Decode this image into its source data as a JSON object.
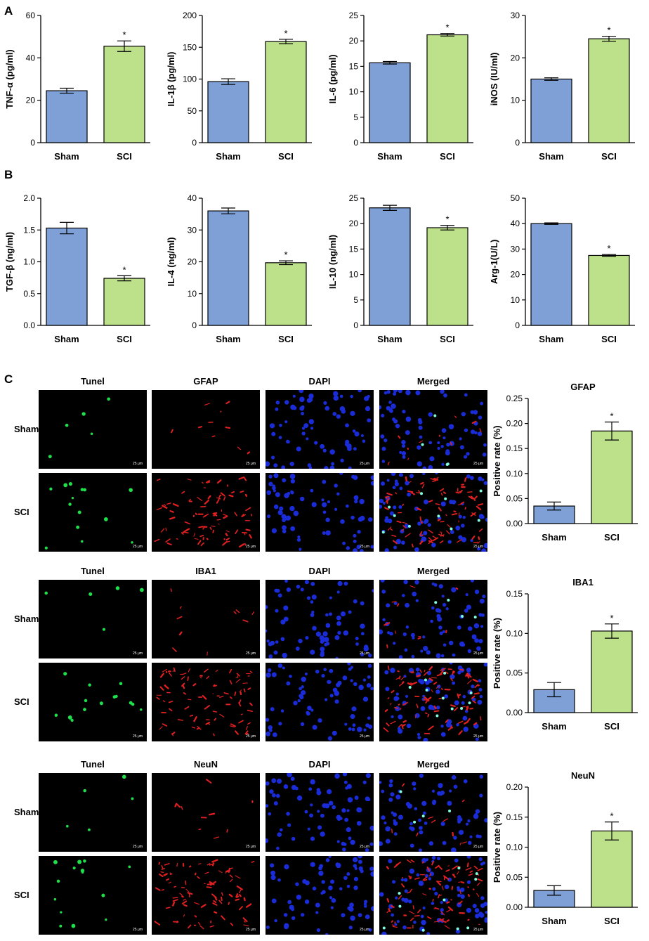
{
  "panels": {
    "a": "A",
    "b": "B",
    "c": "C"
  },
  "colors": {
    "sham": "#7ea0d6",
    "sci": "#bde08a",
    "axis": "#000000"
  },
  "chart_data": [
    {
      "id": "tnf",
      "type": "bar",
      "categories": [
        "Sham",
        "SCI"
      ],
      "values": [
        24.5,
        45.5
      ],
      "errors": [
        1.2,
        2.5
      ],
      "sig": [
        "",
        "*"
      ],
      "ylabel": "TNF-α (pg/ml)",
      "ylim": [
        0,
        60
      ],
      "yticks": [
        "0",
        "20",
        "40",
        "60"
      ]
    },
    {
      "id": "il1b",
      "type": "bar",
      "categories": [
        "Sham",
        "SCI"
      ],
      "values": [
        96,
        159
      ],
      "errors": [
        4.5,
        3.5
      ],
      "sig": [
        "",
        "*"
      ],
      "ylabel": "IL-1β (pg/ml)",
      "ylim": [
        0,
        200
      ],
      "yticks": [
        "0",
        "50",
        "100",
        "150",
        "200"
      ]
    },
    {
      "id": "il6",
      "type": "bar",
      "categories": [
        "Sham",
        "SCI"
      ],
      "values": [
        15.7,
        21.2
      ],
      "errors": [
        0.25,
        0.25
      ],
      "sig": [
        "",
        "*"
      ],
      "ylabel": "IL-6 (pg/ml)",
      "ylim": [
        0,
        25
      ],
      "yticks": [
        "0",
        "5",
        "10",
        "15",
        "20",
        "25"
      ]
    },
    {
      "id": "inos",
      "type": "bar",
      "categories": [
        "Sham",
        "SCI"
      ],
      "values": [
        15.0,
        24.5
      ],
      "errors": [
        0.3,
        0.6
      ],
      "sig": [
        "",
        "*"
      ],
      "ylabel": "iNOS (IU/ml)",
      "ylim": [
        0,
        30
      ],
      "yticks": [
        "0",
        "10",
        "20",
        "30"
      ]
    },
    {
      "id": "tgfb",
      "type": "bar",
      "categories": [
        "Sham",
        "SCI"
      ],
      "values": [
        1.53,
        0.74
      ],
      "errors": [
        0.09,
        0.04
      ],
      "sig": [
        "",
        "*"
      ],
      "ylabel": "TGF-β (ng/ml)",
      "ylim": [
        0,
        2.0
      ],
      "yticks": [
        "0.0",
        "0.5",
        "1.0",
        "1.5",
        "2.0"
      ]
    },
    {
      "id": "il4",
      "type": "bar",
      "categories": [
        "Sham",
        "SCI"
      ],
      "values": [
        36,
        19.7
      ],
      "errors": [
        0.9,
        0.6
      ],
      "sig": [
        "",
        "*"
      ],
      "ylabel": "IL-4 (ng/ml)",
      "ylim": [
        0,
        40
      ],
      "yticks": [
        "0",
        "10",
        "20",
        "30",
        "40"
      ]
    },
    {
      "id": "il10",
      "type": "bar",
      "categories": [
        "Sham",
        "SCI"
      ],
      "values": [
        23.1,
        19.2
      ],
      "errors": [
        0.5,
        0.45
      ],
      "sig": [
        "",
        "*"
      ],
      "ylabel": "IL-10 (ng/ml)",
      "ylim": [
        0,
        25
      ],
      "yticks": [
        "0",
        "5",
        "10",
        "15",
        "20",
        "25"
      ]
    },
    {
      "id": "arg1",
      "type": "bar",
      "categories": [
        "Sham",
        "SCI"
      ],
      "values": [
        40,
        27.5
      ],
      "errors": [
        0.3,
        0.35
      ],
      "sig": [
        "",
        "*"
      ],
      "ylabel": "Arg-1(U/L)",
      "ylim": [
        0,
        50
      ],
      "yticks": [
        "0",
        "10",
        "20",
        "30",
        "40",
        "50"
      ]
    },
    {
      "id": "gfap",
      "type": "bar",
      "title": "GFAP",
      "categories": [
        "Sham",
        "SCI"
      ],
      "values": [
        0.035,
        0.185
      ],
      "errors": [
        0.008,
        0.018
      ],
      "sig": [
        "",
        "*"
      ],
      "ylabel": "Positive rate (%)",
      "ylim": [
        0,
        0.25
      ],
      "yticks": [
        "0.00",
        "0.05",
        "0.10",
        "0.15",
        "0.20",
        "0.25"
      ]
    },
    {
      "id": "iba1",
      "type": "bar",
      "title": "IBA1",
      "categories": [
        "Sham",
        "SCI"
      ],
      "values": [
        0.029,
        0.103
      ],
      "errors": [
        0.009,
        0.009
      ],
      "sig": [
        "",
        "*"
      ],
      "ylabel": "Positive rate (%)",
      "ylim": [
        0,
        0.15
      ],
      "yticks": [
        "0.00",
        "0.05",
        "0.10",
        "0.15"
      ]
    },
    {
      "id": "neun",
      "type": "bar",
      "title": "NeuN",
      "categories": [
        "Sham",
        "SCI"
      ],
      "values": [
        0.028,
        0.127
      ],
      "errors": [
        0.008,
        0.015
      ],
      "sig": [
        "",
        "*"
      ],
      "ylabel": "Positive rate (%)",
      "ylim": [
        0,
        0.2
      ],
      "yticks": [
        "0.00",
        "0.05",
        "0.10",
        "0.15",
        "0.20"
      ]
    }
  ],
  "micrographs": {
    "scale_label": "25 μm",
    "rows": [
      "Sham",
      "SCI"
    ],
    "groups": [
      {
        "id": "gfap",
        "columns": [
          "Tunel",
          "GFAP",
          "DAPI",
          "Merged"
        ]
      },
      {
        "id": "iba1",
        "columns": [
          "Tunel",
          "IBA1",
          "DAPI",
          "Merged"
        ]
      },
      {
        "id": "neun",
        "columns": [
          "Tunel",
          "NeuN",
          "DAPI",
          "Merged"
        ]
      }
    ]
  }
}
